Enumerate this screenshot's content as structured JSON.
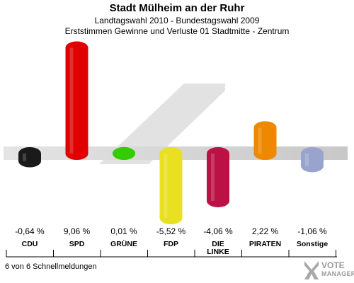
{
  "header": {
    "title": "Stadt Mülheim an der Ruhr",
    "subtitle": "Landtagswahl 2010 - Bundestagswahl 2009",
    "description": "Erststimmen Gewinne und Verluste 01 Stadtmitte - Zentrum"
  },
  "chart_data": {
    "type": "bar",
    "categories": [
      "CDU",
      "SPD",
      "GRÜNE",
      "FDP",
      "DIE LINKE",
      "PIRATEN",
      "Sonstige"
    ],
    "values": [
      -0.64,
      9.06,
      0.01,
      -5.52,
      -4.06,
      2.22,
      -1.06
    ],
    "value_labels": [
      "-0,64 %",
      "9,06 %",
      "0,01 %",
      "-5,52 %",
      "-4,06 %",
      "2,22 %",
      "-1,06 %"
    ],
    "colors": [
      "#1a1a1a",
      "#e00000",
      "#33cc00",
      "#e8e020",
      "#bb1144",
      "#ee8800",
      "#99a4cc"
    ],
    "baseline": 0,
    "title": "",
    "xlabel": "",
    "ylabel": ""
  },
  "footer": {
    "text": "6 von 6 Schnellmeldungen"
  },
  "logo": {
    "line1": "VOTE",
    "line2": "MANAGER"
  }
}
